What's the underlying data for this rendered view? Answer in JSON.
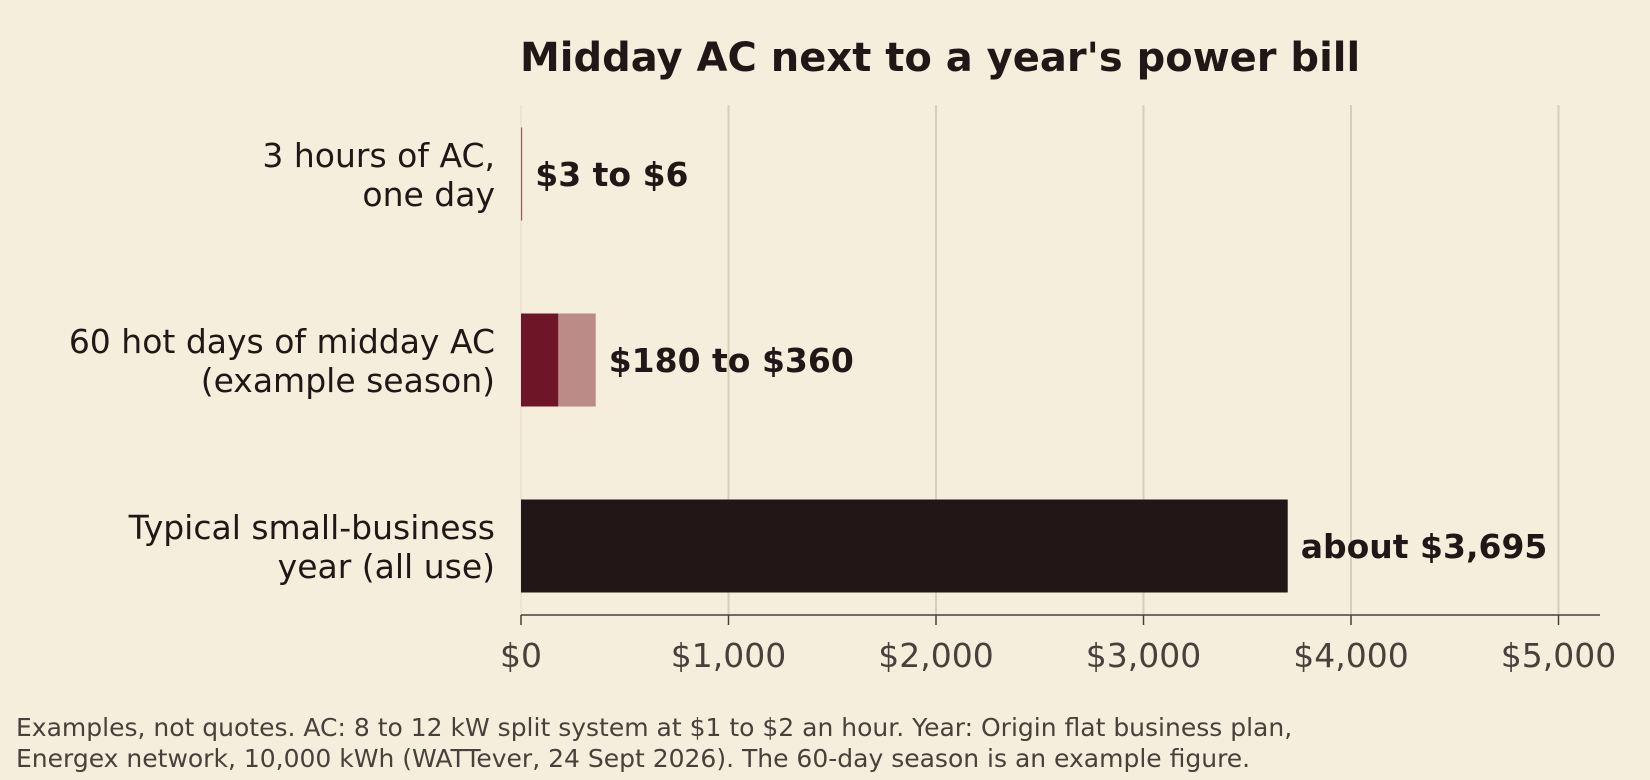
{
  "chart_data": {
    "type": "bar",
    "orientation": "horizontal",
    "title": "Midday AC next to a year's power bill",
    "xlim": [
      0,
      5200
    ],
    "xticks": [
      0,
      1000,
      2000,
      3000,
      4000,
      5000
    ],
    "xtick_labels": [
      "$0",
      "$1,000",
      "$2,000",
      "$3,000",
      "$4,000",
      "$5,000"
    ],
    "grid": "vertical",
    "categories": [
      {
        "lines": [
          "3 hours of AC,",
          "one day"
        ],
        "low": 3,
        "high": 6,
        "label": "$3 to $6",
        "kind": "range"
      },
      {
        "lines": [
          "60 hot days of midday AC",
          "(example season)"
        ],
        "low": 180,
        "high": 360,
        "label": "$180 to $360",
        "kind": "range"
      },
      {
        "lines": [
          "Typical small-business",
          "year (all use)"
        ],
        "low": 3695,
        "high": 3695,
        "label": "about $3,695",
        "kind": "point"
      }
    ],
    "colors": {
      "range_low": "#6e1528",
      "range_high": "#bb8b88",
      "point": "#221716",
      "background": "#f5eedc"
    }
  },
  "footnote": {
    "line1": "Examples, not quotes. AC: 8 to 12 kW split system at $1 to $2 an hour. Year: Origin flat business plan,",
    "line2": "Energex network, 10,000 kWh (WATTever, 24 Sept 2026). The 60-day season is an example figure."
  }
}
